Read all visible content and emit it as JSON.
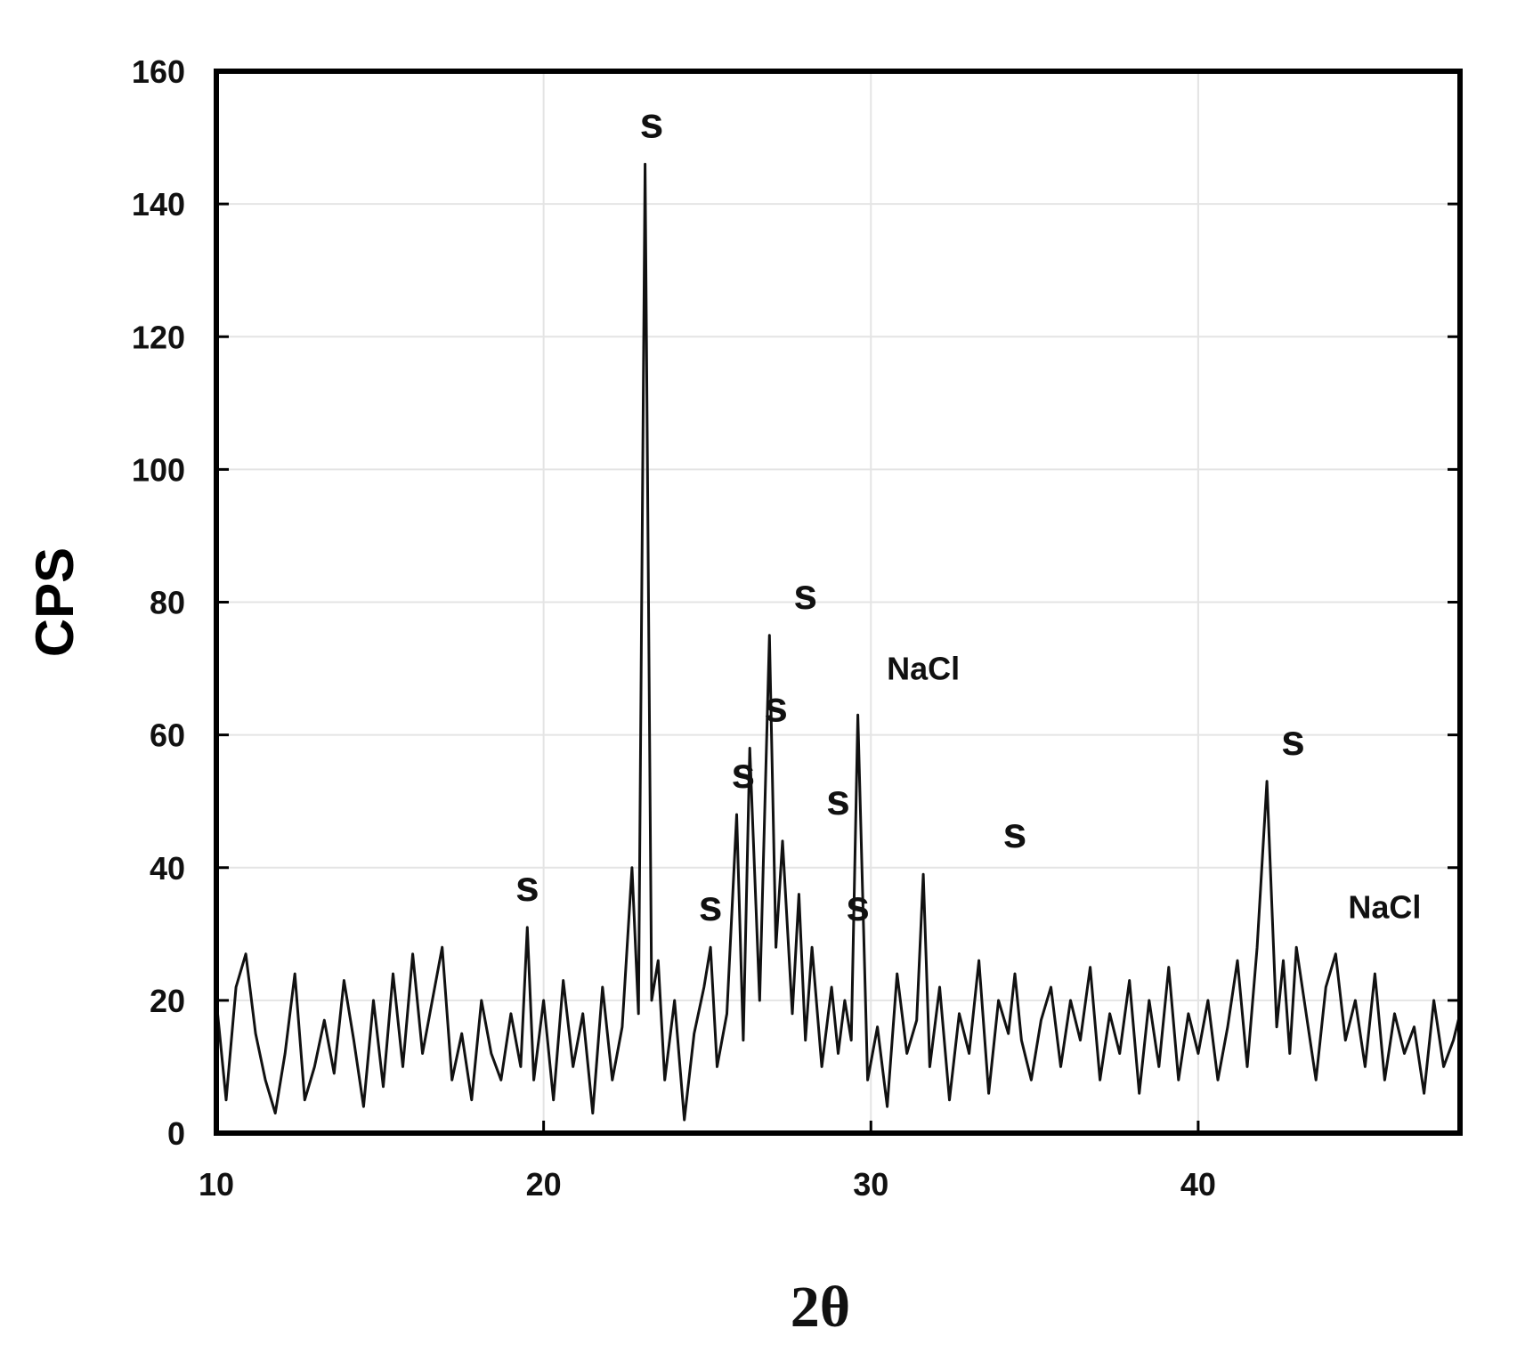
{
  "chart_data": {
    "type": "line",
    "title": "",
    "xlabel": "2θ",
    "ylabel": "CPS",
    "xlim": [
      10,
      48
    ],
    "ylim": [
      0,
      160
    ],
    "x_ticks": [
      "10",
      "20",
      "30",
      "40"
    ],
    "y_ticks": [
      "0",
      "20",
      "40",
      "60",
      "80",
      "100",
      "120",
      "140",
      "160"
    ],
    "grid": true,
    "legend": "none",
    "line_color": "#111111",
    "series": [
      {
        "x": [
          10.0,
          10.3,
          10.6,
          10.9,
          11.2,
          11.5,
          11.8,
          12.1,
          12.4,
          12.7,
          13.0,
          13.3,
          13.6,
          13.9,
          14.2,
          14.5,
          14.8,
          15.1,
          15.4,
          15.7,
          16.0,
          16.3,
          16.6,
          16.9,
          17.2,
          17.5,
          17.8,
          18.1,
          18.4,
          18.7,
          19.0,
          19.3,
          19.5,
          19.7,
          20.0,
          20.3,
          20.6,
          20.9,
          21.2,
          21.5,
          21.8,
          22.1,
          22.4,
          22.7,
          22.9,
          23.1,
          23.3,
          23.5,
          23.7,
          24.0,
          24.3,
          24.6,
          24.9,
          25.1,
          25.3,
          25.6,
          25.9,
          26.1,
          26.3,
          26.6,
          26.9,
          27.1,
          27.3,
          27.6,
          27.8,
          28.0,
          28.2,
          28.5,
          28.8,
          29.0,
          29.2,
          29.4,
          29.6,
          29.9,
          30.2,
          30.5,
          30.8,
          31.1,
          31.4,
          31.6,
          31.8,
          32.1,
          32.4,
          32.7,
          33.0,
          33.3,
          33.6,
          33.9,
          34.2,
          34.4,
          34.6,
          34.9,
          35.2,
          35.5,
          35.8,
          36.1,
          36.4,
          36.7,
          37.0,
          37.3,
          37.6,
          37.9,
          38.2,
          38.5,
          38.8,
          39.1,
          39.4,
          39.7,
          40.0,
          40.3,
          40.6,
          40.9,
          41.2,
          41.5,
          41.8,
          42.1,
          42.4,
          42.6,
          42.8,
          43.0,
          43.3,
          43.6,
          43.9,
          44.2,
          44.5,
          44.8,
          45.1,
          45.4,
          45.7,
          46.0,
          46.3,
          46.6,
          46.9,
          47.2,
          47.5,
          47.8,
          48.0
        ],
        "y": [
          20,
          5,
          22,
          27,
          15,
          8,
          3,
          12,
          24,
          5,
          10,
          17,
          9,
          23,
          14,
          4,
          20,
          7,
          24,
          10,
          27,
          12,
          20,
          28,
          8,
          15,
          5,
          20,
          12,
          8,
          18,
          10,
          31,
          8,
          20,
          5,
          23,
          10,
          18,
          3,
          22,
          8,
          16,
          40,
          18,
          146,
          20,
          26,
          8,
          20,
          2,
          15,
          22,
          28,
          10,
          18,
          48,
          14,
          58,
          20,
          75,
          28,
          44,
          18,
          36,
          14,
          28,
          10,
          22,
          12,
          20,
          14,
          63,
          8,
          16,
          4,
          24,
          12,
          17,
          39,
          10,
          22,
          5,
          18,
          12,
          26,
          6,
          20,
          15,
          24,
          14,
          8,
          17,
          22,
          10,
          20,
          14,
          25,
          8,
          18,
          12,
          23,
          6,
          20,
          10,
          25,
          8,
          18,
          12,
          20,
          8,
          16,
          26,
          10,
          28,
          53,
          16,
          26,
          12,
          28,
          18,
          8,
          22,
          27,
          14,
          20,
          10,
          24,
          8,
          18,
          12,
          16,
          6,
          20,
          10,
          14,
          18
        ]
      }
    ],
    "annotations": [
      {
        "text": "s",
        "x": 19.5,
        "y": 31
      },
      {
        "text": "s",
        "x": 23.3,
        "y": 146
      },
      {
        "text": "s",
        "x": 25.1,
        "y": 28
      },
      {
        "text": "s",
        "x": 26.1,
        "y": 48
      },
      {
        "text": "s",
        "x": 27.1,
        "y": 58
      },
      {
        "text": "s",
        "x": 28.0,
        "y": 75
      },
      {
        "text": "s",
        "x": 29.0,
        "y": 44
      },
      {
        "text": "s",
        "x": 29.6,
        "y": 28
      },
      {
        "text": "NaCl",
        "x": 31.6,
        "y": 63
      },
      {
        "text": "s",
        "x": 34.4,
        "y": 39
      },
      {
        "text": "s",
        "x": 42.9,
        "y": 53
      },
      {
        "text": "NaCl",
        "x": 45.7,
        "y": 27
      }
    ]
  }
}
